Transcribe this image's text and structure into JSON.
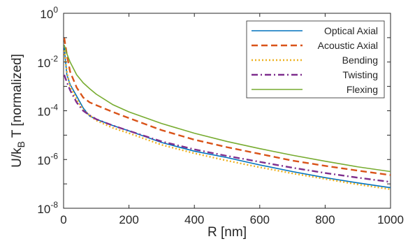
{
  "chart_data": {
    "type": "line",
    "title": "",
    "xlabel": "R [nm]",
    "ylabel": {
      "main": "U/k",
      "sub": "B",
      "rest": " T [normalized]"
    },
    "xlim": [
      0,
      1000
    ],
    "ylim_log10": [
      -8,
      0
    ],
    "yscale": "log",
    "grid": false,
    "legend_placement": "top-right",
    "xticks": [
      {
        "value": 0,
        "label": "0"
      },
      {
        "value": 200,
        "label": "200"
      },
      {
        "value": 400,
        "label": "400"
      },
      {
        "value": 600,
        "label": "600"
      },
      {
        "value": 800,
        "label": "800"
      },
      {
        "value": 1000,
        "label": "1000"
      }
    ],
    "yticks": [
      {
        "exp": 0,
        "base": "10",
        "power": "0"
      },
      {
        "exp": -2,
        "base": "10",
        "power": "-2"
      },
      {
        "exp": -4,
        "base": "10",
        "power": "-4"
      },
      {
        "exp": -6,
        "base": "10",
        "power": "-6"
      },
      {
        "exp": -8,
        "base": "10",
        "power": "-8"
      }
    ],
    "series": [
      {
        "name": "Optical Axial",
        "color": "#0072BD",
        "style": "solid",
        "points": [
          [
            2,
            0.04
          ],
          [
            10,
            0.003
          ],
          [
            20,
            0.0012
          ],
          [
            40,
            0.0004
          ],
          [
            60,
            0.00013
          ],
          [
            80,
            6e-05
          ],
          [
            100,
            4.5e-05
          ],
          [
            150,
            2.5e-05
          ],
          [
            200,
            1.5e-05
          ],
          [
            300,
            5e-06
          ],
          [
            400,
            2.2e-06
          ],
          [
            500,
            1.2e-06
          ],
          [
            600,
            6e-07
          ],
          [
            700,
            3.2e-07
          ],
          [
            800,
            1.8e-07
          ],
          [
            900,
            1.1e-07
          ],
          [
            1000,
            7e-08
          ]
        ]
      },
      {
        "name": "Acoustic Axial",
        "color": "#D95319",
        "style": "dashed",
        "points": [
          [
            2,
            0.1
          ],
          [
            10,
            0.02
          ],
          [
            20,
            0.004
          ],
          [
            40,
            0.0009
          ],
          [
            60,
            0.00035
          ],
          [
            80,
            0.00022
          ],
          [
            100,
            0.00017
          ],
          [
            150,
            9e-05
          ],
          [
            200,
            5e-05
          ],
          [
            300,
            1.6e-05
          ],
          [
            400,
            6.5e-06
          ],
          [
            500,
            3.2e-06
          ],
          [
            600,
            1.7e-06
          ],
          [
            700,
            9e-07
          ],
          [
            800,
            5.5e-07
          ],
          [
            900,
            3.5e-07
          ],
          [
            1000,
            2.3e-07
          ]
        ]
      },
      {
        "name": "Bending",
        "color": "#EDB120",
        "style": "dotted",
        "points": [
          [
            2,
            0.03
          ],
          [
            10,
            0.004
          ],
          [
            20,
            0.001
          ],
          [
            40,
            0.0003
          ],
          [
            60,
            0.00011
          ],
          [
            80,
            6.5e-05
          ],
          [
            100,
            4e-05
          ],
          [
            150,
            2e-05
          ],
          [
            200,
            1.2e-05
          ],
          [
            300,
            4e-06
          ],
          [
            400,
            1.8e-06
          ],
          [
            500,
            9e-07
          ],
          [
            600,
            4.8e-07
          ],
          [
            700,
            2.7e-07
          ],
          [
            800,
            1.6e-07
          ],
          [
            900,
            9.5e-08
          ],
          [
            1000,
            6e-08
          ]
        ]
      },
      {
        "name": "Twisting",
        "color": "#7E2F8E",
        "style": "dashdot",
        "points": [
          [
            2,
            0.003
          ],
          [
            10,
            0.0015
          ],
          [
            20,
            0.0007
          ],
          [
            40,
            0.00022
          ],
          [
            60,
            0.0001
          ],
          [
            80,
            6.5e-05
          ],
          [
            100,
            4.5e-05
          ],
          [
            150,
            2.5e-05
          ],
          [
            200,
            1.5e-05
          ],
          [
            300,
            5.5e-06
          ],
          [
            400,
            2.6e-06
          ],
          [
            500,
            1.4e-06
          ],
          [
            600,
            8e-07
          ],
          [
            700,
            4.6e-07
          ],
          [
            800,
            2.8e-07
          ],
          [
            900,
            1.8e-07
          ],
          [
            1000,
            1.2e-07
          ]
        ]
      },
      {
        "name": "Flexing",
        "color": "#77AC30",
        "style": "solid",
        "points": [
          [
            2,
            0.05
          ],
          [
            10,
            0.022
          ],
          [
            20,
            0.01
          ],
          [
            40,
            0.003
          ],
          [
            60,
            0.0014
          ],
          [
            80,
            0.0008
          ],
          [
            100,
            0.00048
          ],
          [
            150,
            0.00018
          ],
          [
            200,
            9e-05
          ],
          [
            300,
            3e-05
          ],
          [
            400,
            1.2e-05
          ],
          [
            500,
            5.5e-06
          ],
          [
            600,
            2.8e-06
          ],
          [
            700,
            1.5e-06
          ],
          [
            800,
            8.5e-07
          ],
          [
            900,
            5e-07
          ],
          [
            1000,
            3.2e-07
          ]
        ]
      }
    ]
  }
}
